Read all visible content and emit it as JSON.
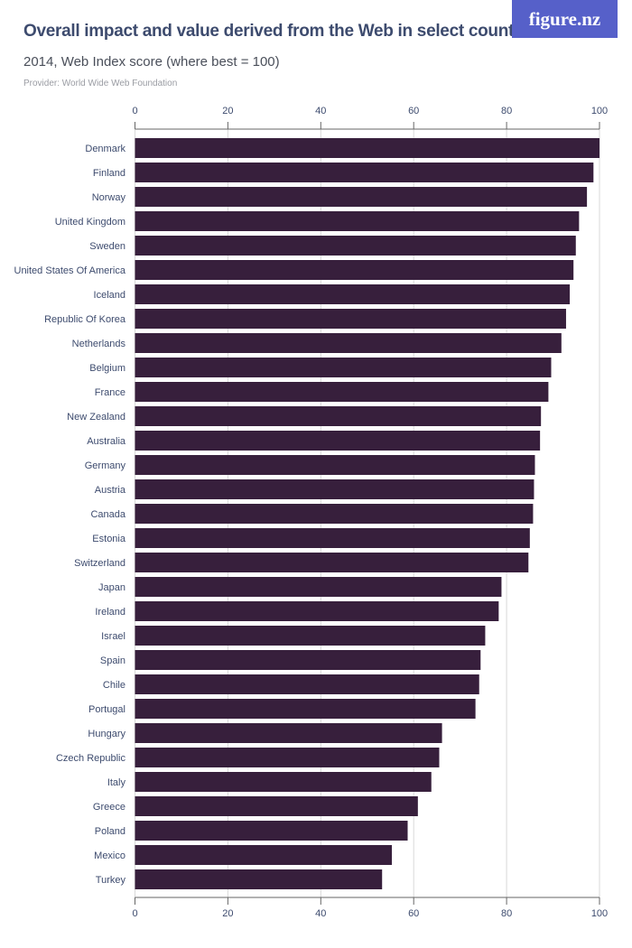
{
  "header": {
    "title": "Overall impact and value derived from the Web in select countries",
    "subtitle": "2014, Web Index score (where best = 100)",
    "provider": "Provider: World Wide Web Foundation",
    "logo_text": "figure.nz"
  },
  "colors": {
    "bar": "#371f3c",
    "logo_bg": "#5660c9",
    "text": "#3d4b6e",
    "grid": "#d8d8d8"
  },
  "chart_data": {
    "type": "bar",
    "orientation": "horizontal",
    "title": "Overall impact and value derived from the Web in select countries",
    "subtitle": "2014, Web Index score (where best = 100)",
    "xlim": [
      0,
      100
    ],
    "ticks": [
      0,
      20,
      40,
      60,
      80,
      100
    ],
    "grid": true,
    "categories": [
      "Denmark",
      "Finland",
      "Norway",
      "United Kingdom",
      "Sweden",
      "United States Of America",
      "Iceland",
      "Republic Of Korea",
      "Netherlands",
      "Belgium",
      "France",
      "New Zealand",
      "Australia",
      "Germany",
      "Austria",
      "Canada",
      "Estonia",
      "Switzerland",
      "Japan",
      "Ireland",
      "Israel",
      "Spain",
      "Chile",
      "Portugal",
      "Hungary",
      "Czech Republic",
      "Italy",
      "Greece",
      "Poland",
      "Mexico",
      "Turkey"
    ],
    "values": [
      100,
      98.7,
      97.3,
      95.6,
      94.9,
      94.4,
      93.6,
      92.8,
      91.8,
      89.6,
      89.0,
      87.4,
      87.2,
      86.1,
      85.9,
      85.7,
      85.0,
      84.7,
      78.9,
      78.3,
      75.4,
      74.4,
      74.1,
      73.3,
      66.1,
      65.5,
      63.8,
      60.9,
      58.7,
      55.3,
      53.2
    ]
  }
}
